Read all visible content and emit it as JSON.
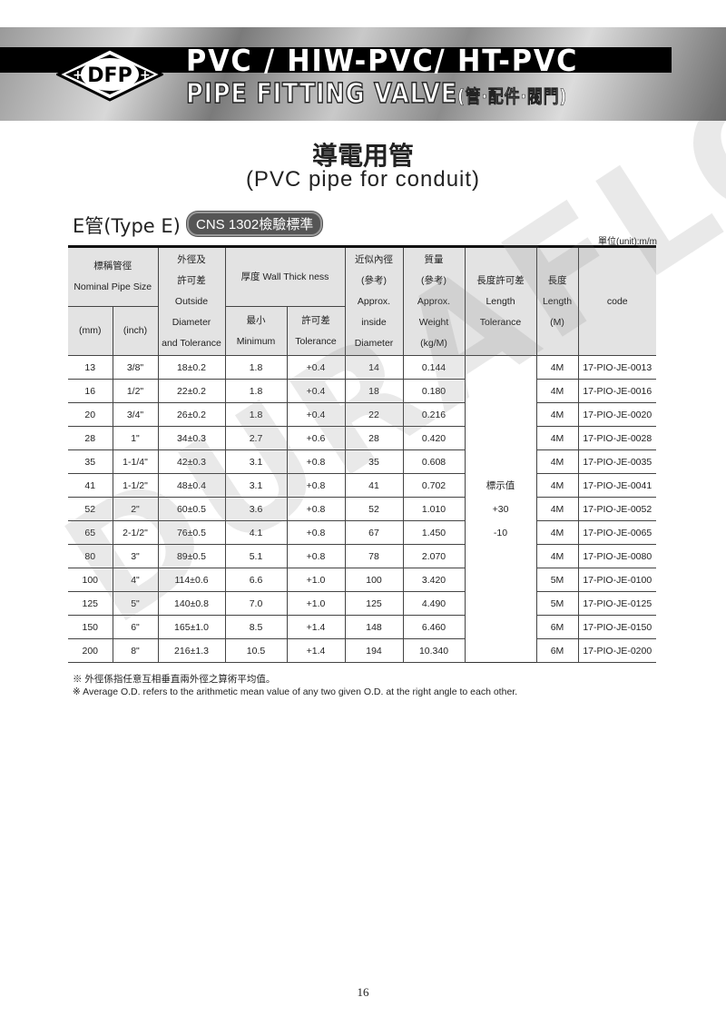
{
  "header": {
    "line1": "PVC / HIW-PVC/ HT-PVC",
    "line2": "PIPE FITTING VALVE",
    "line2_zh": "(管·配件·閥門)",
    "logo": "DFP"
  },
  "title": {
    "zh": "導電用管",
    "en": "(PVC pipe for conduit)"
  },
  "section": {
    "type": "E管(Type E)",
    "standard": "CNS 1302檢驗標準",
    "unit": "單位(unit):m/m"
  },
  "table": {
    "headers": {
      "nominal": [
        "標稱管徑",
        "Nominal Pipe Size"
      ],
      "mm": "(mm)",
      "inch": "(inch)",
      "od": [
        "外徑及",
        "許可差",
        "Outside",
        "Diameter",
        "and Tolerance"
      ],
      "wall": "厚度 Wall Thick ness",
      "min": [
        "最小",
        "Minimum"
      ],
      "tol": [
        "許可差",
        "Tolerance"
      ],
      "inside": [
        "近似內徑",
        "(參考)",
        "Approx.",
        "inside",
        "Diameter"
      ],
      "weight": [
        "質量",
        "(參考)",
        "Approx.",
        "Weight",
        "(kg/M)"
      ],
      "lentol": [
        "長度許可差",
        "Length",
        "Tolerance"
      ],
      "length": [
        "長度",
        "Length",
        "(M)"
      ],
      "code": "code"
    },
    "length_tolerance": [
      "標示值",
      "+30",
      "-10"
    ],
    "rows": [
      [
        "13",
        "3/8\"",
        "18±0.2",
        "1.8",
        "+0.4",
        "14",
        "0.144",
        "4M",
        "17-PIO-JE-0013"
      ],
      [
        "16",
        "1/2\"",
        "22±0.2",
        "1.8",
        "+0.4",
        "18",
        "0.180",
        "4M",
        "17-PIO-JE-0016"
      ],
      [
        "20",
        "3/4\"",
        "26±0.2",
        "1.8",
        "+0.4",
        "22",
        "0.216",
        "4M",
        "17-PIO-JE-0020"
      ],
      [
        "28",
        "1\"",
        "34±0.3",
        "2.7",
        "+0.6",
        "28",
        "0.420",
        "4M",
        "17-PIO-JE-0028"
      ],
      [
        "35",
        "1-1/4\"",
        "42±0.3",
        "3.1",
        "+0.8",
        "35",
        "0.608",
        "4M",
        "17-PIO-JE-0035"
      ],
      [
        "41",
        "1-1/2\"",
        "48±0.4",
        "3.1",
        "+0.8",
        "41",
        "0.702",
        "4M",
        "17-PIO-JE-0041"
      ],
      [
        "52",
        "2\"",
        "60±0.5",
        "3.6",
        "+0.8",
        "52",
        "1.010",
        "4M",
        "17-PIO-JE-0052"
      ],
      [
        "65",
        "2-1/2\"",
        "76±0.5",
        "4.1",
        "+0.8",
        "67",
        "1.450",
        "4M",
        "17-PIO-JE-0065"
      ],
      [
        "80",
        "3\"",
        "89±0.5",
        "5.1",
        "+0.8",
        "78",
        "2.070",
        "4M",
        "17-PIO-JE-0080"
      ],
      [
        "100",
        "4\"",
        "114±0.6",
        "6.6",
        "+1.0",
        "100",
        "3.420",
        "5M",
        "17-PIO-JE-0100"
      ],
      [
        "125",
        "5\"",
        "140±0.8",
        "7.0",
        "+1.0",
        "125",
        "4.490",
        "5M",
        "17-PIO-JE-0125"
      ],
      [
        "150",
        "6\"",
        "165±1.0",
        "8.5",
        "+1.4",
        "148",
        "6.460",
        "6M",
        "17-PIO-JE-0150"
      ],
      [
        "200",
        "8\"",
        "216±1.3",
        "10.5",
        "+1.4",
        "194",
        "10.340",
        "6M",
        "17-PIO-JE-0200"
      ]
    ]
  },
  "notes": [
    "※ 外徑係指任意互相垂直兩外徑之算術平均值。",
    "※  Average O.D. refers to the arithmetic mean value of any two given O.D. at the right angle to each other."
  ],
  "page_number": "16",
  "watermark": "DURAFLOW"
}
